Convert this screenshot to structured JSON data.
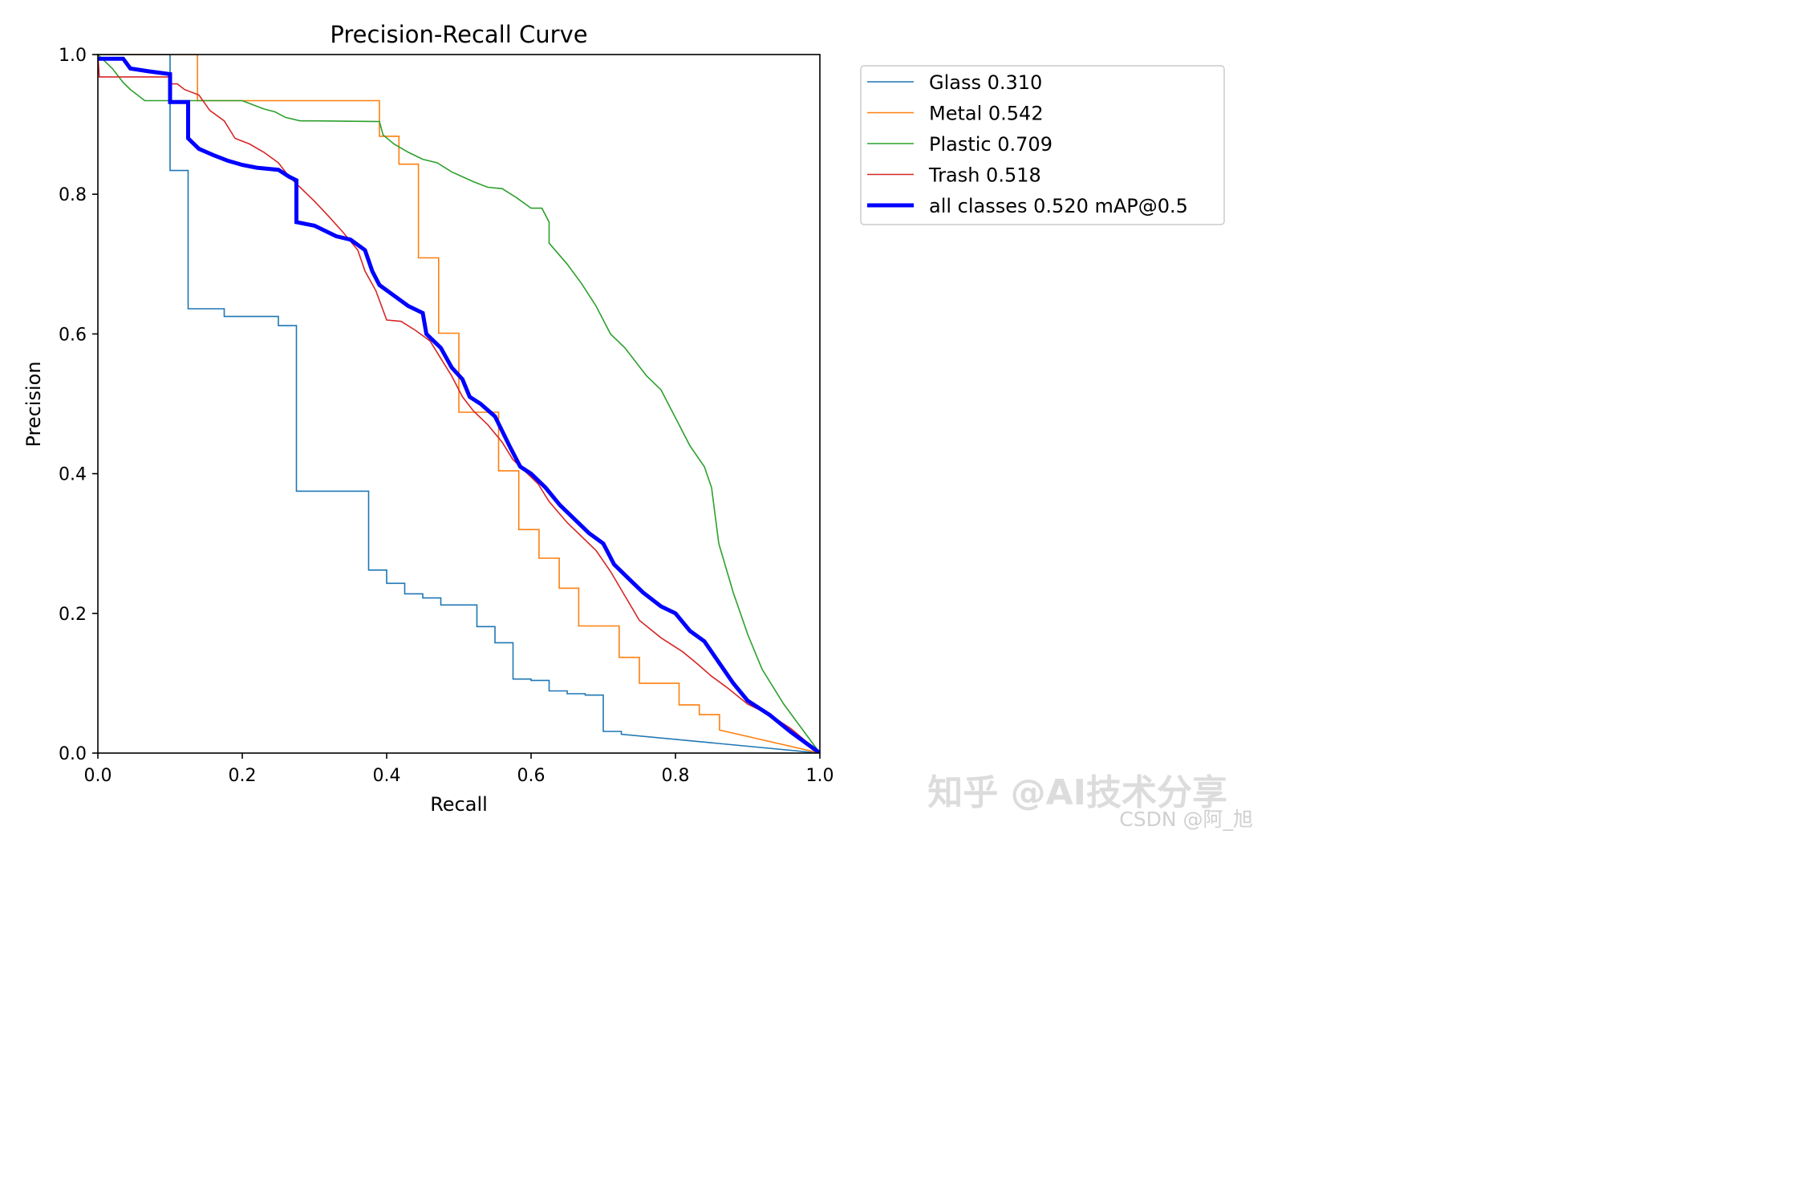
{
  "chart_data": {
    "type": "line",
    "title": "Precision-Recall Curve",
    "xlabel": "Recall",
    "ylabel": "Precision",
    "xlim": [
      0,
      1
    ],
    "ylim": [
      0,
      1
    ],
    "xticks": [
      "0.0",
      "0.2",
      "0.4",
      "0.6",
      "0.8",
      "1.0"
    ],
    "yticks": [
      "0.0",
      "0.2",
      "0.4",
      "0.6",
      "0.8",
      "1.0"
    ],
    "grid": false,
    "legend_position": "outside-top-right",
    "series": [
      {
        "name": "Glass 0.310",
        "color": "#1f77b4",
        "width": 1.6,
        "step": true,
        "points": [
          [
            0,
            1
          ],
          [
            0.1,
            1
          ],
          [
            0.1,
            0.834
          ],
          [
            0.125,
            0.834
          ],
          [
            0.125,
            0.636
          ],
          [
            0.175,
            0.636
          ],
          [
            0.175,
            0.625
          ],
          [
            0.25,
            0.625
          ],
          [
            0.25,
            0.612
          ],
          [
            0.275,
            0.612
          ],
          [
            0.275,
            0.375
          ],
          [
            0.375,
            0.375
          ],
          [
            0.375,
            0.262
          ],
          [
            0.4,
            0.262
          ],
          [
            0.4,
            0.243
          ],
          [
            0.425,
            0.243
          ],
          [
            0.425,
            0.228
          ],
          [
            0.45,
            0.228
          ],
          [
            0.45,
            0.222
          ],
          [
            0.475,
            0.222
          ],
          [
            0.475,
            0.212
          ],
          [
            0.525,
            0.212
          ],
          [
            0.525,
            0.181
          ],
          [
            0.55,
            0.181
          ],
          [
            0.55,
            0.158
          ],
          [
            0.575,
            0.158
          ],
          [
            0.575,
            0.106
          ],
          [
            0.6,
            0.106
          ],
          [
            0.6,
            0.104
          ],
          [
            0.625,
            0.104
          ],
          [
            0.625,
            0.089
          ],
          [
            0.65,
            0.089
          ],
          [
            0.65,
            0.085
          ],
          [
            0.675,
            0.085
          ],
          [
            0.675,
            0.083
          ],
          [
            0.7,
            0.083
          ],
          [
            0.7,
            0.031
          ],
          [
            0.725,
            0.031
          ],
          [
            0.725,
            0.027
          ],
          [
            1.0,
            0
          ]
        ]
      },
      {
        "name": "Metal 0.542",
        "color": "#ff7f0e",
        "width": 1.6,
        "step": true,
        "points": [
          [
            0,
            1
          ],
          [
            0.125,
            1
          ],
          [
            0.138,
            1
          ],
          [
            0.138,
            0.934
          ],
          [
            0.39,
            0.934
          ],
          [
            0.39,
            0.883
          ],
          [
            0.417,
            0.883
          ],
          [
            0.417,
            0.843
          ],
          [
            0.444,
            0.843
          ],
          [
            0.444,
            0.709
          ],
          [
            0.472,
            0.709
          ],
          [
            0.472,
            0.601
          ],
          [
            0.5,
            0.601
          ],
          [
            0.5,
            0.488
          ],
          [
            0.555,
            0.488
          ],
          [
            0.555,
            0.404
          ],
          [
            0.583,
            0.404
          ],
          [
            0.583,
            0.32
          ],
          [
            0.611,
            0.32
          ],
          [
            0.611,
            0.279
          ],
          [
            0.639,
            0.279
          ],
          [
            0.639,
            0.236
          ],
          [
            0.666,
            0.236
          ],
          [
            0.666,
            0.182
          ],
          [
            0.722,
            0.182
          ],
          [
            0.722,
            0.137
          ],
          [
            0.75,
            0.137
          ],
          [
            0.75,
            0.1
          ],
          [
            0.805,
            0.1
          ],
          [
            0.805,
            0.069
          ],
          [
            0.833,
            0.069
          ],
          [
            0.833,
            0.055
          ],
          [
            0.861,
            0.055
          ],
          [
            0.861,
            0.033
          ],
          [
            1.0,
            0
          ]
        ]
      },
      {
        "name": "Plastic 0.709",
        "color": "#2ca02c",
        "width": 1.6,
        "step": false,
        "points": [
          [
            0,
            1
          ],
          [
            0.02,
            0.98
          ],
          [
            0.035,
            0.96
          ],
          [
            0.045,
            0.95
          ],
          [
            0.065,
            0.934
          ],
          [
            0.2,
            0.934
          ],
          [
            0.215,
            0.928
          ],
          [
            0.23,
            0.922
          ],
          [
            0.245,
            0.918
          ],
          [
            0.26,
            0.91
          ],
          [
            0.28,
            0.905
          ],
          [
            0.3,
            0.905
          ],
          [
            0.39,
            0.904
          ],
          [
            0.395,
            0.885
          ],
          [
            0.41,
            0.872
          ],
          [
            0.43,
            0.86
          ],
          [
            0.45,
            0.85
          ],
          [
            0.47,
            0.845
          ],
          [
            0.49,
            0.832
          ],
          [
            0.505,
            0.825
          ],
          [
            0.52,
            0.818
          ],
          [
            0.54,
            0.81
          ],
          [
            0.56,
            0.808
          ],
          [
            0.58,
            0.795
          ],
          [
            0.6,
            0.78
          ],
          [
            0.615,
            0.78
          ],
          [
            0.625,
            0.76
          ],
          [
            0.625,
            0.73
          ],
          [
            0.65,
            0.7
          ],
          [
            0.67,
            0.672
          ],
          [
            0.69,
            0.64
          ],
          [
            0.71,
            0.6
          ],
          [
            0.73,
            0.58
          ],
          [
            0.76,
            0.54
          ],
          [
            0.78,
            0.52
          ],
          [
            0.8,
            0.48
          ],
          [
            0.82,
            0.44
          ],
          [
            0.84,
            0.41
          ],
          [
            0.85,
            0.38
          ],
          [
            0.86,
            0.3
          ],
          [
            0.88,
            0.23
          ],
          [
            0.9,
            0.17
          ],
          [
            0.92,
            0.12
          ],
          [
            0.95,
            0.07
          ],
          [
            1.0,
            0
          ]
        ]
      },
      {
        "name": "Trash 0.518",
        "color": "#d62728",
        "width": 1.6,
        "step": false,
        "points": [
          [
            0,
            1
          ],
          [
            0.002,
            0.968
          ],
          [
            0.1,
            0.968
          ],
          [
            0.1,
            0.958
          ],
          [
            0.11,
            0.958
          ],
          [
            0.12,
            0.95
          ],
          [
            0.14,
            0.942
          ],
          [
            0.155,
            0.92
          ],
          [
            0.175,
            0.905
          ],
          [
            0.19,
            0.88
          ],
          [
            0.21,
            0.872
          ],
          [
            0.23,
            0.86
          ],
          [
            0.25,
            0.845
          ],
          [
            0.265,
            0.825
          ],
          [
            0.28,
            0.81
          ],
          [
            0.3,
            0.79
          ],
          [
            0.32,
            0.768
          ],
          [
            0.34,
            0.745
          ],
          [
            0.36,
            0.72
          ],
          [
            0.37,
            0.69
          ],
          [
            0.385,
            0.662
          ],
          [
            0.4,
            0.62
          ],
          [
            0.42,
            0.618
          ],
          [
            0.44,
            0.605
          ],
          [
            0.46,
            0.59
          ],
          [
            0.475,
            0.565
          ],
          [
            0.49,
            0.54
          ],
          [
            0.505,
            0.51
          ],
          [
            0.52,
            0.49
          ],
          [
            0.54,
            0.47
          ],
          [
            0.56,
            0.445
          ],
          [
            0.575,
            0.42
          ],
          [
            0.59,
            0.405
          ],
          [
            0.61,
            0.385
          ],
          [
            0.625,
            0.36
          ],
          [
            0.65,
            0.33
          ],
          [
            0.67,
            0.31
          ],
          [
            0.69,
            0.29
          ],
          [
            0.71,
            0.26
          ],
          [
            0.73,
            0.225
          ],
          [
            0.75,
            0.19
          ],
          [
            0.78,
            0.165
          ],
          [
            0.81,
            0.145
          ],
          [
            0.83,
            0.128
          ],
          [
            0.85,
            0.11
          ],
          [
            0.87,
            0.095
          ],
          [
            0.9,
            0.07
          ],
          [
            0.93,
            0.055
          ],
          [
            0.96,
            0.035
          ],
          [
            1.0,
            0
          ]
        ]
      },
      {
        "name": "all classes 0.520 mAP@0.5",
        "color": "#0000ff",
        "width": 5,
        "step": false,
        "points": [
          [
            0,
            0.994
          ],
          [
            0.035,
            0.994
          ],
          [
            0.045,
            0.98
          ],
          [
            0.07,
            0.976
          ],
          [
            0.1,
            0.972
          ],
          [
            0.1,
            0.932
          ],
          [
            0.125,
            0.932
          ],
          [
            0.125,
            0.88
          ],
          [
            0.14,
            0.865
          ],
          [
            0.16,
            0.856
          ],
          [
            0.18,
            0.848
          ],
          [
            0.2,
            0.842
          ],
          [
            0.22,
            0.838
          ],
          [
            0.25,
            0.835
          ],
          [
            0.265,
            0.825
          ],
          [
            0.275,
            0.82
          ],
          [
            0.275,
            0.76
          ],
          [
            0.3,
            0.755
          ],
          [
            0.33,
            0.74
          ],
          [
            0.35,
            0.735
          ],
          [
            0.37,
            0.72
          ],
          [
            0.38,
            0.69
          ],
          [
            0.39,
            0.67
          ],
          [
            0.41,
            0.655
          ],
          [
            0.43,
            0.64
          ],
          [
            0.45,
            0.63
          ],
          [
            0.455,
            0.6
          ],
          [
            0.475,
            0.58
          ],
          [
            0.49,
            0.552
          ],
          [
            0.505,
            0.535
          ],
          [
            0.515,
            0.51
          ],
          [
            0.53,
            0.5
          ],
          [
            0.55,
            0.482
          ],
          [
            0.57,
            0.44
          ],
          [
            0.585,
            0.41
          ],
          [
            0.6,
            0.4
          ],
          [
            0.62,
            0.38
          ],
          [
            0.64,
            0.355
          ],
          [
            0.66,
            0.335
          ],
          [
            0.68,
            0.315
          ],
          [
            0.7,
            0.3
          ],
          [
            0.715,
            0.27
          ],
          [
            0.735,
            0.25
          ],
          [
            0.755,
            0.23
          ],
          [
            0.78,
            0.21
          ],
          [
            0.8,
            0.2
          ],
          [
            0.82,
            0.175
          ],
          [
            0.84,
            0.16
          ],
          [
            0.86,
            0.13
          ],
          [
            0.88,
            0.1
          ],
          [
            0.9,
            0.075
          ],
          [
            0.93,
            0.055
          ],
          [
            0.96,
            0.03
          ],
          [
            1.0,
            0
          ]
        ]
      }
    ]
  },
  "watermarks": {
    "zhihu": "知乎 @AI技术分享",
    "csdn": "CSDN @阿_旭"
  }
}
